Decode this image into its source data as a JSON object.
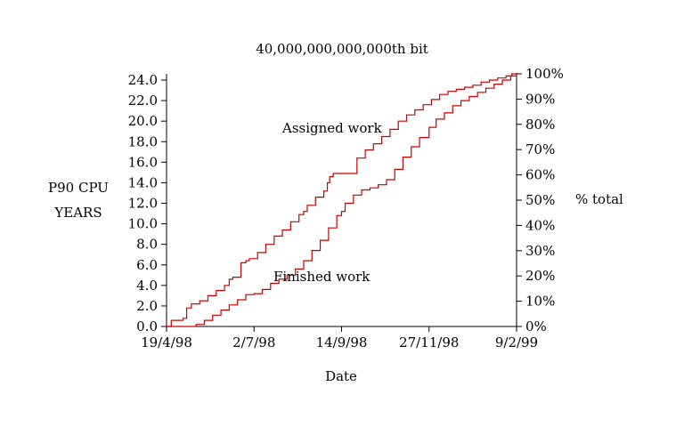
{
  "chart_data": {
    "type": "line",
    "title": "40,000,000,000,000th bit",
    "xlabel": "Date",
    "ylabel": [
      "P90 CPU",
      "YEARS"
    ],
    "y2label": "% total",
    "ylim": [
      0,
      24.0
    ],
    "y2lim": [
      0,
      100
    ],
    "xlim": [
      "19/4/98",
      "9/2/99"
    ],
    "x_ticks": [
      "19/4/98",
      "2/7/98",
      "14/9/98",
      "27/11/98",
      "9/2/99"
    ],
    "y_ticks": [
      "0.0",
      "2.0",
      "4.0",
      "6.0",
      "8.0",
      "10.0",
      "12.0",
      "14.0",
      "16.0",
      "18.0",
      "20.0",
      "22.0",
      "24.0"
    ],
    "y2_ticks": [
      "0%",
      "10%",
      "20%",
      "30%",
      "40%",
      "50%",
      "60%",
      "70%",
      "80%",
      "90%",
      "100%"
    ],
    "grid": false,
    "line_color": "#cc0000",
    "annotations": [
      "Assigned work",
      "Finished work"
    ],
    "series": [
      {
        "label": "Assigned work",
        "step": true,
        "x": [
          "19/4/98",
          "23/4/98",
          "3/5/98",
          "6/5/98",
          "10/5/98",
          "17/5/98",
          "24/5/98",
          "31/5/98",
          "7/6/98",
          "11/6/98",
          "14/6/98",
          "21/6/98",
          "25/6/98",
          "28/6/98",
          "5/7/98",
          "12/7/98",
          "19/7/98",
          "26/7/98",
          "2/8/98",
          "9/8/98",
          "13/8/98",
          "16/8/98",
          "23/8/98",
          "30/8/98",
          "2/9/98",
          "4/9/98",
          "7/9/98",
          "14/9/98",
          "21/9/98",
          "24/9/98",
          "27/9/98",
          "4/10/98",
          "11/10/98",
          "18/10/98",
          "25/10/98",
          "1/11/98",
          "8/11/98",
          "15/11/98",
          "22/11/98",
          "29/11/98",
          "6/12/98",
          "13/12/98",
          "20/12/98",
          "27/12/98",
          "3/1/99",
          "10/1/99",
          "17/1/99",
          "24/1/99",
          "31/1/99",
          "5/2/99",
          "9/2/99"
        ],
        "y": [
          0.0,
          0.6,
          0.8,
          1.8,
          2.2,
          2.5,
          3.0,
          3.5,
          4.0,
          4.6,
          4.8,
          6.2,
          6.4,
          6.6,
          7.2,
          8.0,
          8.8,
          9.4,
          10.2,
          10.9,
          11.2,
          11.8,
          12.6,
          13.2,
          14.0,
          14.6,
          14.9,
          14.9,
          14.9,
          14.9,
          16.4,
          17.2,
          17.8,
          18.5,
          19.2,
          20.0,
          20.6,
          21.1,
          21.6,
          22.1,
          22.6,
          22.9,
          23.1,
          23.3,
          23.5,
          23.8,
          24.0,
          24.2,
          24.4,
          24.6,
          24.7
        ]
      },
      {
        "label": "Finished work",
        "step": true,
        "x": [
          "19/4/98",
          "9/5/98",
          "14/5/98",
          "21/5/98",
          "28/5/98",
          "4/6/98",
          "11/6/98",
          "18/6/98",
          "25/6/98",
          "2/7/98",
          "9/7/98",
          "16/7/98",
          "23/7/98",
          "30/7/98",
          "6/8/98",
          "13/8/98",
          "20/8/98",
          "27/8/98",
          "3/9/98",
          "10/9/98",
          "14/9/98",
          "17/9/98",
          "24/9/98",
          "1/10/98",
          "8/10/98",
          "15/10/98",
          "22/10/98",
          "29/10/98",
          "5/11/98",
          "12/11/98",
          "19/11/98",
          "27/11/98",
          "3/12/98",
          "10/12/98",
          "17/12/98",
          "24/12/98",
          "31/12/98",
          "7/1/99",
          "14/1/99",
          "21/1/99",
          "28/1/99",
          "4/2/99",
          "9/2/99"
        ],
        "y": [
          0.0,
          0.0,
          0.2,
          0.6,
          1.1,
          1.6,
          2.1,
          2.6,
          3.1,
          3.2,
          3.6,
          4.2,
          4.6,
          5.0,
          5.6,
          6.4,
          7.4,
          8.4,
          9.6,
          10.8,
          11.2,
          12.0,
          12.8,
          13.3,
          13.5,
          13.8,
          14.3,
          15.3,
          16.5,
          17.5,
          18.4,
          19.4,
          20.2,
          20.8,
          21.5,
          22.0,
          22.4,
          22.8,
          23.2,
          23.6,
          24.0,
          24.4,
          24.7
        ]
      }
    ]
  }
}
